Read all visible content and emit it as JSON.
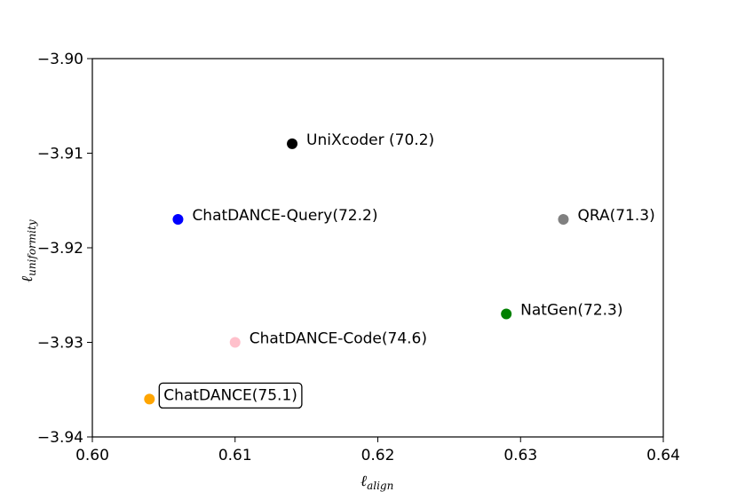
{
  "chart_data": {
    "type": "scatter",
    "title": "",
    "xlabel": "ℓ",
    "xlabel_sub": "align",
    "ylabel": "ℓ",
    "ylabel_sub": "uniformity",
    "xlim": [
      0.6,
      0.64
    ],
    "ylim": [
      -3.94,
      -3.9
    ],
    "xticks": [
      "0.60",
      "0.61",
      "0.62",
      "0.63",
      "0.64"
    ],
    "yticks": [
      "−3.90",
      "−3.91",
      "−3.92",
      "−3.93",
      "−3.94"
    ],
    "grid": false,
    "points": [
      {
        "label": "UniXcoder (70.2)",
        "x": 0.614,
        "y": -3.909,
        "color": "#000000",
        "boxed": false
      },
      {
        "label": "ChatDANCE-Query(72.2)",
        "x": 0.606,
        "y": -3.917,
        "color": "#0000ff",
        "boxed": false
      },
      {
        "label": "QRA(71.3)",
        "x": 0.633,
        "y": -3.917,
        "color": "#808080",
        "boxed": false
      },
      {
        "label": "NatGen(72.3)",
        "x": 0.629,
        "y": -3.927,
        "color": "#008000",
        "boxed": false
      },
      {
        "label": "ChatDANCE-Code(74.6)",
        "x": 0.61,
        "y": -3.93,
        "color": "#ffc0cb",
        "boxed": false
      },
      {
        "label": "ChatDANCE(75.1)",
        "x": 0.604,
        "y": -3.936,
        "color": "#ffa500",
        "boxed": true
      }
    ]
  }
}
